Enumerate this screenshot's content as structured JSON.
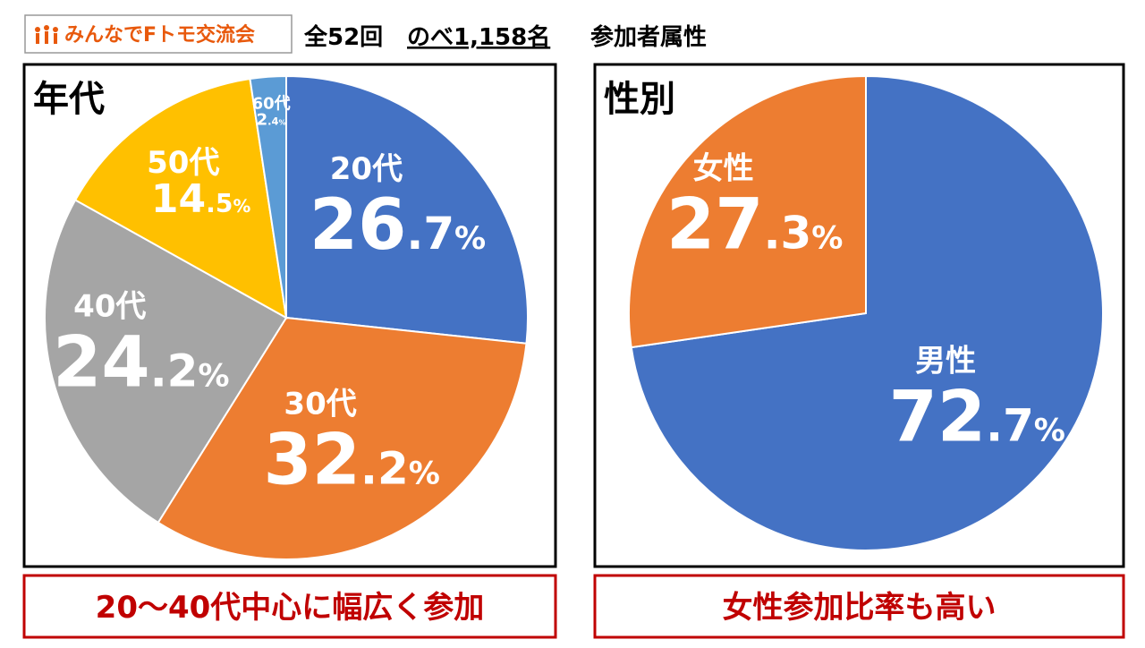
{
  "header": {
    "logo": "みんなでFトモ交流会",
    "sessions": "全52回",
    "participants": "のべ1,158名",
    "subject": "参加者属性"
  },
  "chart_data": [
    {
      "type": "pie",
      "title": "年代",
      "caption": "20〜40代中心に幅広く参加",
      "categories": [
        "20代",
        "30代",
        "40代",
        "50代",
        "60代"
      ],
      "values": [
        26.7,
        32.2,
        24.2,
        14.5,
        2.4
      ],
      "value_labels": [
        "26.7%",
        "32.2%",
        "24.2%",
        "14.5%",
        "2.4%"
      ],
      "colors": [
        "#4472c4",
        "#ed7d31",
        "#a5a5a5",
        "#ffc000",
        "#5b9bd5"
      ]
    },
    {
      "type": "pie",
      "title": "性別",
      "caption": "女性参加比率も高い",
      "categories": [
        "男性",
        "女性"
      ],
      "values": [
        72.7,
        27.3
      ],
      "value_labels": [
        "72.7%",
        "27.3%"
      ],
      "colors": [
        "#4472c4",
        "#ed7d31"
      ]
    }
  ]
}
